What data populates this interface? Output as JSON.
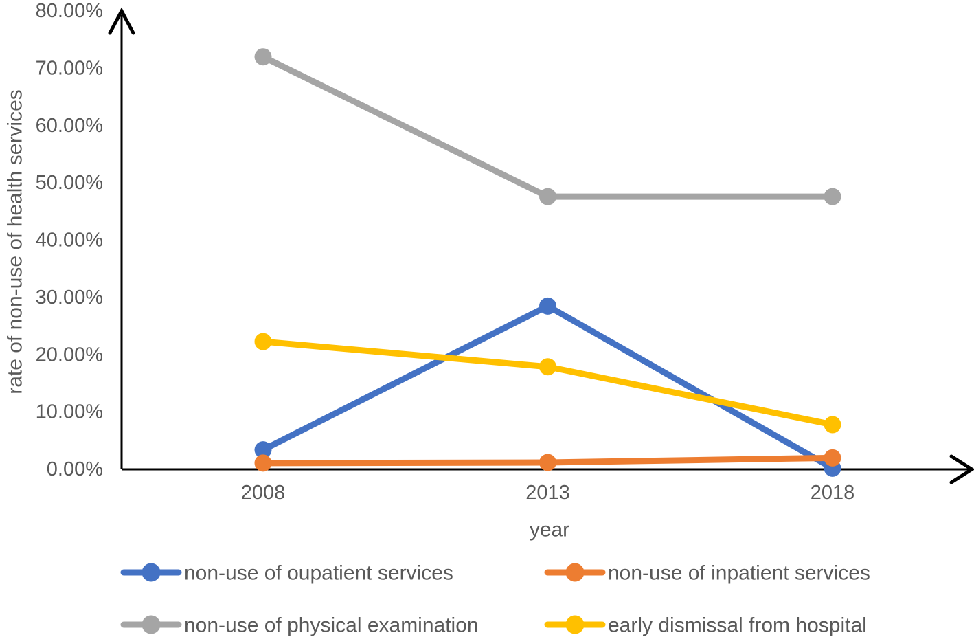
{
  "chart_data": {
    "type": "line",
    "title": "",
    "xlabel": "year",
    "ylabel": "rate of non-use of health services",
    "categories": [
      "2008",
      "2013",
      "2018"
    ],
    "y_ticks": [
      "0.00%",
      "10.00%",
      "20.00%",
      "30.00%",
      "40.00%",
      "50.00%",
      "60.00%",
      "70.00%",
      "80.00%"
    ],
    "ylim": [
      0,
      80
    ],
    "grid": false,
    "legend_position": "bottom-two-column",
    "marker": "circle",
    "axis_color": "#000000",
    "text_color": "#595959",
    "series": [
      {
        "name": "non-use of oupatient services",
        "color": "#4472C4",
        "values": [
          3.4,
          28.5,
          0.2
        ]
      },
      {
        "name": "non-use of inpatient services",
        "color": "#ED7D31",
        "values": [
          1.1,
          1.2,
          2.0
        ]
      },
      {
        "name": "non-use of physical examination",
        "color": "#A5A5A5",
        "values": [
          72.0,
          47.6,
          47.6
        ]
      },
      {
        "name": "early dismissal from hospital",
        "color": "#FFC000",
        "values": [
          22.3,
          17.9,
          7.8
        ]
      }
    ]
  }
}
